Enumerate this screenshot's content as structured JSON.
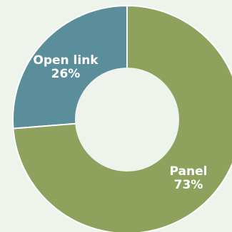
{
  "chart_data": {
    "type": "pie",
    "style": "donut",
    "title": "",
    "slices": [
      {
        "label": "Open link",
        "value": 26,
        "value_label": "26%",
        "color": "#5a8e9a"
      },
      {
        "label": "Panel",
        "value": 73,
        "value_label": "73%",
        "color": "#8ea25e"
      }
    ],
    "legend": "none",
    "background": "#eef3ec",
    "slice_border_color": "#ffffff"
  }
}
